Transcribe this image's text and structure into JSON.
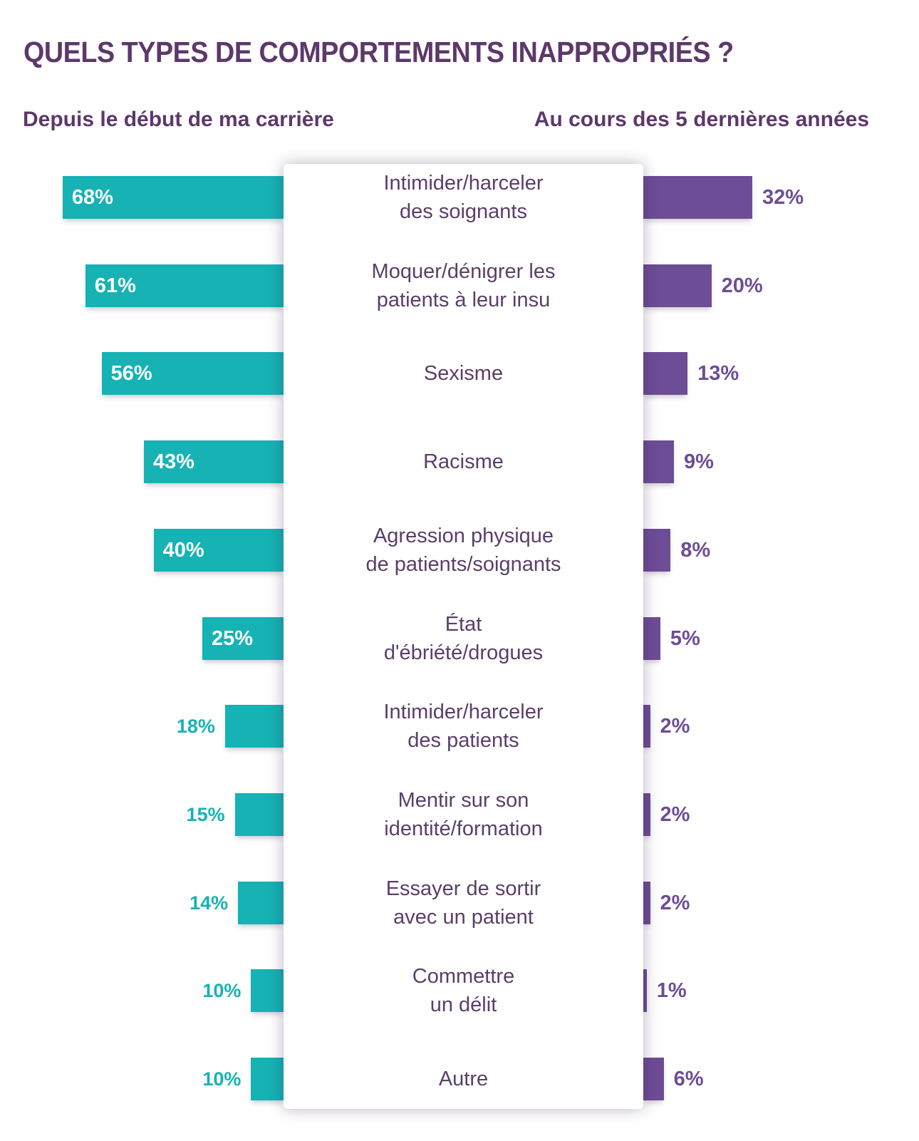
{
  "title": "QUELS TYPES DE COMPORTEMENTS INAPPROPRIÉS ?",
  "colors": {
    "teal": "#16b2b4",
    "purple": "#6d4d96",
    "title_purple": "#5d386a",
    "category_text": "#5a3f69",
    "background": "#ffffff"
  },
  "chart_data": {
    "type": "bar",
    "layout": "diverging-horizontal",
    "unit": "%",
    "grid": false,
    "categories": [
      "Intimider/harceler\ndes soignants",
      "Moquer/dénigrer les\npatients à leur insu",
      "Sexisme",
      "Racisme",
      "Agression physique\nde patients/soignants",
      "État\nd'ébriété/drogues",
      "Intimider/harceler\ndes patients",
      "Mentir sur son\nidentité/formation",
      "Essayer de sortir\navec un patient",
      "Commettre\nun délit",
      "Autre"
    ],
    "series": [
      {
        "name": "Depuis le début de ma carrière",
        "side": "left",
        "color": "#16b2b4",
        "values": [
          68,
          61,
          56,
          43,
          40,
          25,
          18,
          15,
          14,
          10,
          10
        ],
        "labels": [
          "68%",
          "61%",
          "56%",
          "43%",
          "40%",
          "25%",
          "18%",
          "15%",
          "14%",
          "10%",
          "10%"
        ]
      },
      {
        "name": "Au cours des 5 dernières années",
        "side": "right",
        "color": "#6d4d96",
        "values": [
          32,
          20,
          13,
          9,
          8,
          5,
          2,
          2,
          2,
          1,
          6
        ],
        "labels": [
          "32%",
          "20%",
          "13%",
          "9%",
          "8%",
          "5%",
          "2%",
          "2%",
          "2%",
          "1%",
          "6%"
        ]
      }
    ]
  }
}
